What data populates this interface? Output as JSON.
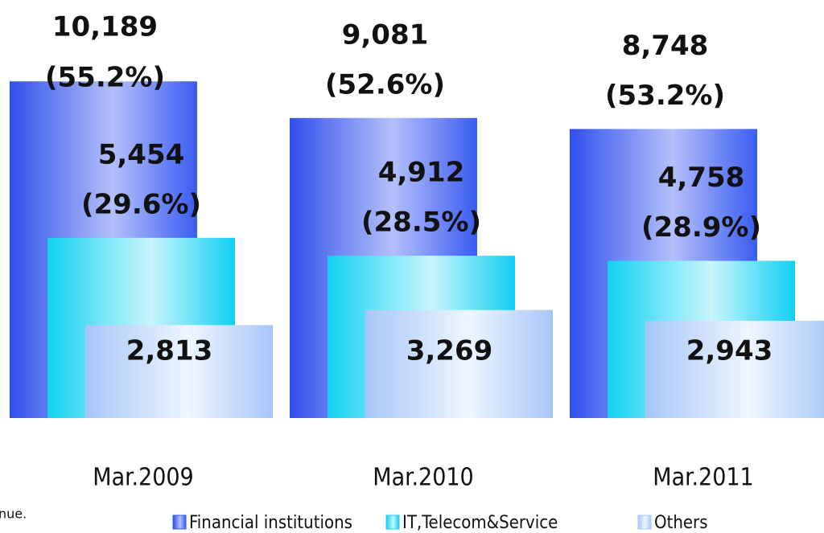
{
  "chart_data": {
    "type": "overlapping-bar",
    "categories": [
      "Mar.2009",
      "Mar.2010",
      "Mar.2011"
    ],
    "series": [
      {
        "name": "Financial institutions",
        "color": "#3355ee",
        "values": [
          10189,
          9081,
          8748
        ],
        "value_labels": [
          [
            "10,189",
            "(55.2%)"
          ],
          [
            "9,081",
            "(52.6%)"
          ],
          [
            "8,748",
            "(53.2%)"
          ]
        ]
      },
      {
        "name": "IT,Telecom&Service",
        "color": "#18d4f0",
        "values": [
          5454,
          4912,
          4758
        ],
        "value_labels": [
          [
            "5,454",
            "(29.6%)"
          ],
          [
            "4,912",
            "(28.5%)"
          ],
          [
            "4,758",
            "(28.9%)"
          ]
        ]
      },
      {
        "name": "Others",
        "color": "#a8c8f8",
        "values": [
          2813,
          3269,
          2943
        ],
        "value_labels": [
          "2,813",
          "3,269",
          "2,943"
        ]
      }
    ],
    "note": "nue."
  }
}
